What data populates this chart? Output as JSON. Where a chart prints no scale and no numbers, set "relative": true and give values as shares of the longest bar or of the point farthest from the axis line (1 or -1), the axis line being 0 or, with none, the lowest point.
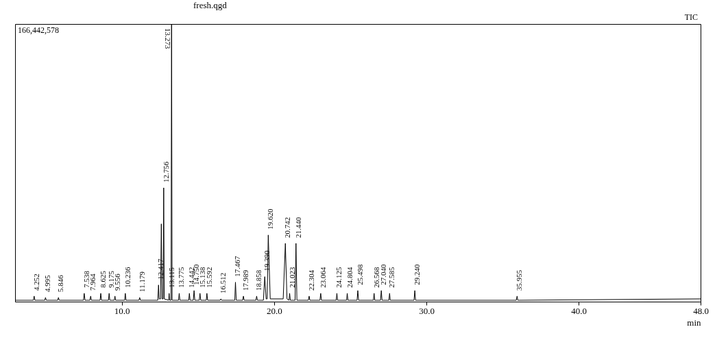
{
  "chart_data": {
    "type": "line",
    "title": "fresh.qgd",
    "xlabel": "min",
    "relative": true,
    "color": "#000000",
    "grid": false,
    "marker": "none",
    "line_style": "solid",
    "xlim": [
      3,
      48
    ],
    "xticks": [
      {
        "value": 10,
        "label": "10.0"
      },
      {
        "value": 20,
        "label": "20.0"
      },
      {
        "value": 30,
        "label": "30.0"
      },
      {
        "value": 40,
        "label": "40.0"
      },
      {
        "value": 48,
        "label": "48.0"
      }
    ],
    "x": [
      3,
      4.2,
      4.252,
      4.3,
      4.95,
      4.995,
      5.05,
      5.8,
      5.846,
      5.9,
      7.49,
      7.538,
      7.59,
      7.91,
      7.964,
      8.01,
      8.58,
      8.625,
      8.67,
      9.13,
      9.175,
      9.22,
      9.51,
      9.556,
      9.6,
      10.19,
      10.236,
      10.28,
      11.13,
      11.179,
      11.23,
      12.37,
      12.417,
      12.46,
      12.55,
      12.6,
      12.65,
      12.72,
      12.756,
      12.79,
      13.08,
      13.115,
      13.15,
      13.24,
      13.273,
      13.31,
      13.73,
      13.775,
      13.82,
      14.4,
      14.442,
      14.49,
      14.7,
      14.75,
      14.8,
      15.09,
      15.138,
      15.19,
      15.55,
      15.592,
      15.64,
      16.46,
      16.512,
      16.56,
      17.42,
      17.467,
      17.52,
      17.94,
      17.989,
      18.04,
      18.81,
      18.858,
      18.91,
      19.3,
      19.39,
      19.48,
      19.55,
      19.62,
      19.75,
      20.6,
      20.742,
      20.85,
      20.98,
      21.023,
      21.07,
      21.38,
      21.44,
      21.5,
      22.25,
      22.304,
      22.35,
      23.01,
      23.064,
      23.11,
      24.08,
      24.125,
      24.17,
      24.76,
      24.804,
      24.85,
      25.45,
      25.498,
      25.55,
      26.52,
      26.568,
      26.61,
      26.99,
      27.04,
      27.09,
      27.54,
      27.585,
      27.63,
      29.19,
      29.24,
      29.29,
      35.9,
      35.955,
      36.0,
      48
    ],
    "values": [
      0.005,
      0.005,
      0.02,
      0.005,
      0.005,
      0.015,
      0.005,
      0.005,
      0.015,
      0.005,
      0.005,
      0.03,
      0.005,
      0.005,
      0.02,
      0.005,
      0.005,
      0.03,
      0.005,
      0.005,
      0.03,
      0.005,
      0.005,
      0.02,
      0.005,
      0.005,
      0.03,
      0.005,
      0.005,
      0.015,
      0.005,
      0.005,
      0.06,
      0.01,
      0.01,
      0.28,
      0.01,
      0.01,
      0.41,
      0.01,
      0.005,
      0.03,
      0.005,
      0.005,
      1,
      0.005,
      0.005,
      0.03,
      0.005,
      0.005,
      0.03,
      0.005,
      0.005,
      0.04,
      0.005,
      0.005,
      0.03,
      0.005,
      0.005,
      0.03,
      0.005,
      0.005,
      0.01,
      0.005,
      0.005,
      0.07,
      0.005,
      0.005,
      0.02,
      0.005,
      0.005,
      0.02,
      0.005,
      0.005,
      0.09,
      0.01,
      0.01,
      0.24,
      0.01,
      0.01,
      0.21,
      0.01,
      0.005,
      0.03,
      0.005,
      0.005,
      0.21,
      0.005,
      0.005,
      0.02,
      0.005,
      0.005,
      0.03,
      0.005,
      0.005,
      0.03,
      0.005,
      0.005,
      0.03,
      0.005,
      0.005,
      0.04,
      0.005,
      0.005,
      0.03,
      0.005,
      0.005,
      0.04,
      0.005,
      0.005,
      0.03,
      0.005,
      0.005,
      0.04,
      0.005,
      0.005,
      0.02,
      0.005,
      0.01
    ],
    "annotations": [
      "166,442,578",
      "TIC",
      {
        "text": "4.252",
        "x": 4.252,
        "y": 0.02
      },
      {
        "text": "4.995",
        "x": 4.995,
        "y": 0.015
      },
      {
        "text": "5.846",
        "x": 5.846,
        "y": 0.015
      },
      {
        "text": "7.538",
        "x": 7.538,
        "y": 0.03
      },
      {
        "text": "7.964",
        "x": 7.964,
        "y": 0.02
      },
      {
        "text": "8.625",
        "x": 8.625,
        "y": 0.03
      },
      {
        "text": "9.175",
        "x": 9.175,
        "y": 0.03
      },
      {
        "text": "9.556",
        "x": 9.556,
        "y": 0.02
      },
      {
        "text": "10.236",
        "x": 10.236,
        "y": 0.03
      },
      {
        "text": "11.179",
        "x": 11.179,
        "y": 0.015
      },
      {
        "text": "12.417",
        "x": 12.417,
        "y": 0.06
      },
      {
        "text": "12.756",
        "x": 12.756,
        "y": 0.41
      },
      {
        "text": "13.115",
        "x": 13.115,
        "y": 0.03
      },
      {
        "text": "13.273",
        "x": 13.273,
        "y": 1
      },
      {
        "text": "13.775",
        "x": 13.775,
        "y": 0.03
      },
      {
        "text": "14.442",
        "x": 14.442,
        "y": 0.03
      },
      {
        "text": "14.750",
        "x": 14.75,
        "y": 0.04
      },
      {
        "text": "15.138",
        "x": 15.138,
        "y": 0.03
      },
      {
        "text": "15.592",
        "x": 15.592,
        "y": 0.03
      },
      {
        "text": "16.512",
        "x": 16.512,
        "y": 0.01
      },
      {
        "text": "17.467",
        "x": 17.467,
        "y": 0.07
      },
      {
        "text": "17.989",
        "x": 17.989,
        "y": 0.02
      },
      {
        "text": "18.858",
        "x": 18.858,
        "y": 0.02
      },
      {
        "text": "19.390",
        "x": 19.39,
        "y": 0.09
      },
      {
        "text": "19.620",
        "x": 19.62,
        "y": 0.24
      },
      {
        "text": "20.742",
        "x": 20.742,
        "y": 0.21
      },
      {
        "text": "21.023",
        "x": 21.023,
        "y": 0.03
      },
      {
        "text": "21.440",
        "x": 21.44,
        "y": 0.21
      },
      {
        "text": "22.304",
        "x": 22.304,
        "y": 0.02
      },
      {
        "text": "23.064",
        "x": 23.064,
        "y": 0.03
      },
      {
        "text": "24.125",
        "x": 24.125,
        "y": 0.03
      },
      {
        "text": "24.804",
        "x": 24.804,
        "y": 0.03
      },
      {
        "text": "25.498",
        "x": 25.498,
        "y": 0.04
      },
      {
        "text": "26.568",
        "x": 26.568,
        "y": 0.03
      },
      {
        "text": "27.040",
        "x": 27.04,
        "y": 0.04
      },
      {
        "text": "27.585",
        "x": 27.585,
        "y": 0.03
      },
      {
        "text": "29.240",
        "x": 29.24,
        "y": 0.04
      },
      {
        "text": "35.955",
        "x": 35.955,
        "y": 0.02
      }
    ]
  }
}
